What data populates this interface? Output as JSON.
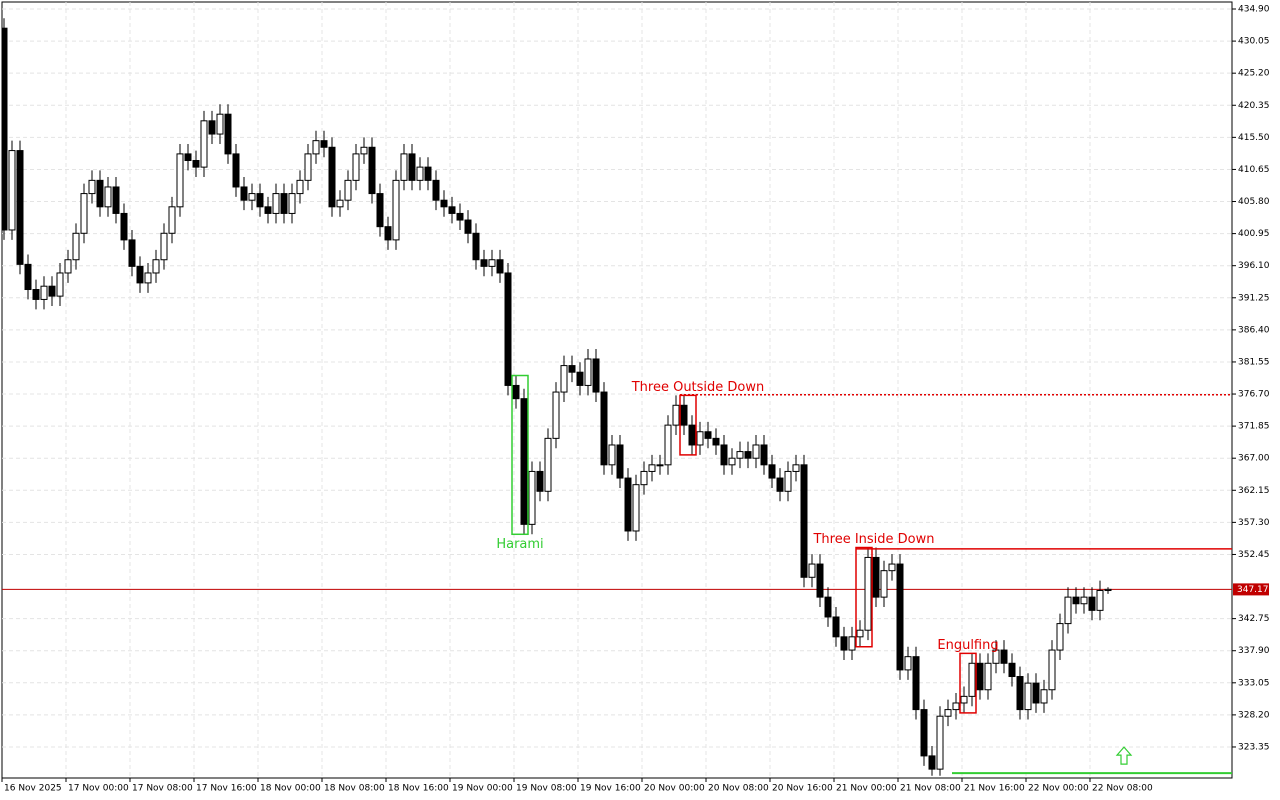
{
  "chart_data": {
    "type": "candlestick",
    "x": [
      "16 Nov 2025",
      null,
      null,
      null,
      null,
      null,
      null,
      null,
      "17 Nov 00:00",
      null,
      null,
      null,
      null,
      null,
      null,
      null,
      "17 Nov 08:00",
      null,
      null,
      null,
      null,
      null,
      null,
      null,
      "17 Nov 16:00",
      null,
      null,
      null,
      null,
      null,
      null,
      null,
      "18 Nov 00:00",
      null,
      null,
      null,
      null,
      null,
      null,
      null,
      "18 Nov 08:00",
      null,
      null,
      null,
      null,
      null,
      null,
      null,
      "18 Nov 16:00",
      null,
      null,
      null,
      null,
      null,
      null,
      null,
      "19 Nov 00:00",
      null,
      null,
      null,
      null,
      null,
      null,
      null,
      "19 Nov 08:00",
      null,
      null,
      null,
      null,
      null,
      null,
      null,
      "19 Nov 16:00",
      null,
      null,
      null,
      null,
      null,
      null,
      null,
      "20 Nov 00:00",
      null,
      null,
      null,
      null,
      null,
      null,
      null,
      "20 Nov 08:00",
      null,
      null,
      null,
      null,
      null,
      null,
      null,
      "20 Nov 16:00",
      null,
      null,
      null,
      null,
      null,
      null,
      null,
      "21 Nov 00:00",
      null,
      null,
      null,
      null,
      null,
      null,
      null,
      "21 Nov 08:00",
      null,
      null,
      null,
      null,
      null,
      null,
      null,
      "21 Nov 16:00",
      null,
      null,
      null,
      null,
      null,
      null,
      null,
      "22 Nov 00:00",
      null,
      null,
      null,
      null,
      null,
      null,
      null,
      "22 Nov 08:00",
      null,
      null
    ],
    "open": [
      432,
      401.5,
      413.5,
      396.3,
      392.5,
      391,
      393,
      391.5,
      395,
      397,
      401,
      407,
      409,
      405,
      408,
      404,
      400,
      396,
      393.5,
      395,
      397,
      401,
      405,
      413,
      412,
      411,
      418,
      416,
      419,
      413,
      408,
      406,
      407,
      405,
      404,
      407,
      404,
      407,
      409,
      413,
      415,
      414,
      405,
      406,
      409,
      413,
      414,
      407,
      402,
      400,
      409,
      413,
      409,
      411,
      409,
      406,
      405,
      404,
      403,
      401,
      397,
      396,
      397,
      395,
      378,
      376,
      357,
      365,
      362,
      370,
      377,
      381,
      380,
      378,
      382,
      377,
      366,
      369,
      364,
      356,
      363,
      365,
      366,
      366,
      372,
      375,
      372,
      369,
      371,
      370,
      369,
      366,
      367,
      368,
      367,
      369,
      366,
      364,
      362,
      365,
      366,
      349,
      351,
      346,
      343,
      340,
      338,
      340,
      341,
      352,
      346,
      350,
      351,
      335,
      337,
      329,
      322,
      320,
      328,
      329,
      330,
      331,
      336,
      332,
      336,
      338,
      336,
      334,
      329,
      333,
      330,
      332,
      338,
      342,
      346,
      345,
      346,
      344,
      347
    ],
    "high": [
      433.5,
      415,
      415,
      397.8,
      394,
      394.5,
      394.5,
      396.5,
      398.5,
      402.5,
      408.5,
      410.5,
      410.5,
      409.5,
      409.5,
      405.5,
      401.5,
      397.5,
      396.5,
      398.5,
      402.5,
      406.5,
      414.5,
      414.5,
      413.5,
      419.5,
      419.5,
      420.5,
      420.5,
      414.5,
      409.5,
      408.5,
      408.5,
      406.5,
      408.5,
      408.5,
      408.5,
      410.5,
      414.5,
      416.5,
      416.5,
      415.5,
      407.5,
      410.5,
      414.5,
      415.5,
      415.5,
      408.5,
      403.5,
      410.5,
      414.5,
      414.5,
      412.5,
      412.5,
      410.5,
      407.5,
      406.5,
      405.5,
      404.5,
      402.5,
      398.5,
      398.5,
      398.5,
      396.5,
      379.5,
      377.5,
      366.5,
      366.5,
      371.5,
      378.5,
      382.5,
      382.5,
      381.5,
      383.5,
      383.5,
      378.5,
      370.5,
      370.5,
      365.5,
      364.5,
      366.5,
      367.5,
      367.5,
      373.5,
      376.5,
      376.5,
      373.5,
      372.5,
      372.5,
      371.5,
      370.5,
      368.5,
      369.5,
      369.5,
      370.5,
      370.5,
      367.5,
      365.5,
      366.5,
      367.5,
      367.5,
      352.5,
      352.5,
      347.5,
      344.5,
      341.5,
      341.5,
      342.5,
      353.5,
      353.5,
      351.5,
      352.5,
      352.5,
      338.5,
      338.5,
      330.5,
      323.5,
      329.5,
      330.5,
      331.5,
      332.5,
      337.5,
      337.5,
      337.5,
      339.5,
      339.5,
      337.5,
      335.5,
      334.5,
      334.5,
      333.5,
      339.5,
      343.5,
      347.5,
      347.5,
      347.5,
      347.5,
      348.5,
      347.5
    ],
    "low": [
      400,
      400,
      394.8,
      391,
      389.5,
      389.5,
      390,
      390,
      393.5,
      395.5,
      399.5,
      405.5,
      403.5,
      403.5,
      402.5,
      398.5,
      394.5,
      392,
      392,
      393.5,
      395.5,
      399.5,
      403.5,
      410.5,
      409.5,
      409.5,
      414.5,
      414.5,
      411.5,
      406.5,
      404.5,
      404.5,
      403.5,
      402.5,
      402.5,
      402.5,
      402.5,
      405.5,
      407.5,
      411.5,
      412.5,
      403.5,
      403.5,
      404.5,
      407.5,
      411.5,
      405.5,
      400.5,
      398.5,
      398.5,
      407.5,
      407.5,
      407.5,
      407.5,
      404.5,
      403.5,
      402.5,
      401.5,
      399.5,
      395.5,
      394.5,
      394.5,
      393.5,
      376.5,
      374.5,
      355.5,
      355.5,
      360.5,
      360.5,
      368.5,
      375.5,
      378.5,
      376.5,
      376.5,
      375.5,
      364.5,
      364.5,
      362.5,
      354.5,
      354.5,
      361.5,
      363.5,
      364.5,
      364.5,
      370.5,
      370.5,
      367.5,
      367.5,
      368.5,
      367.5,
      364.5,
      364.5,
      365.5,
      365.5,
      365.5,
      364.5,
      362.5,
      360.5,
      360.5,
      363.5,
      347.5,
      347.5,
      344.5,
      341.5,
      338.5,
      336.5,
      336.5,
      338.5,
      339.5,
      344.5,
      344.5,
      348.5,
      333.5,
      333.5,
      327.5,
      320.5,
      319,
      319,
      326.5,
      327.5,
      328.5,
      329.5,
      330.5,
      330.5,
      334.5,
      334.5,
      332.5,
      327.5,
      327.5,
      328.5,
      328.5,
      330.5,
      336.5,
      340.5,
      343.5,
      343.5,
      342.5,
      342.5,
      346.5
    ],
    "close": [
      401.5,
      413.5,
      396.3,
      392.5,
      391,
      393,
      391.5,
      395,
      397,
      401,
      407,
      409,
      405,
      408,
      404,
      400,
      396,
      393.5,
      395,
      397,
      401,
      405,
      413,
      412,
      411,
      418,
      416,
      419,
      413,
      408,
      406,
      407,
      405,
      404,
      407,
      404,
      407,
      409,
      413,
      415,
      414,
      405,
      406,
      409,
      413,
      414,
      407,
      402,
      400,
      409,
      413,
      409,
      411,
      409,
      406,
      405,
      404,
      403,
      401,
      397,
      396,
      397,
      395,
      378,
      376,
      357,
      365,
      362,
      370,
      377,
      381,
      380,
      378,
      382,
      377,
      366,
      369,
      364,
      356,
      363,
      365,
      366,
      366,
      372,
      375,
      372,
      369,
      371,
      370,
      369,
      366,
      367,
      368,
      367,
      369,
      366,
      364,
      362,
      365,
      366,
      349,
      351,
      346,
      343,
      340,
      338,
      340,
      341,
      352,
      346,
      350,
      351,
      335,
      337,
      329,
      322,
      320,
      328,
      329,
      330,
      331,
      336,
      332,
      336,
      338,
      336,
      334,
      329,
      333,
      330,
      332,
      338,
      342,
      346,
      345,
      346,
      344,
      347,
      347.17
    ],
    "up_color": "#ffffff",
    "down_color": "#000000",
    "ylim": [
      318.66,
      435.96
    ],
    "yticks": [
      {
        "value": 434.9,
        "label": "434.90"
      },
      430.05,
      {
        "value": 425.2,
        "label": "425.20"
      },
      420.35,
      {
        "value": 415.5,
        "label": "415.50"
      },
      410.65,
      {
        "value": 405.8,
        "label": "405.80"
      },
      400.95,
      {
        "value": 396.1,
        "label": "396.10"
      },
      391.25,
      {
        "value": 386.4,
        "label": "386.40"
      },
      381.55,
      {
        "value": 376.7,
        "label": "376.70"
      },
      371.85,
      {
        "value": 367,
        "label": "367.00"
      },
      362.15,
      {
        "value": 357.3,
        "label": "357.30"
      },
      352.45,
      342.75,
      {
        "value": 337.9,
        "label": "337.90"
      },
      333.05,
      {
        "value": 328.2,
        "label": "328.20"
      },
      323.35
    ],
    "grid": true,
    "current_price": 347.17,
    "current_price_color": "#c00000",
    "annotations": [
      {
        "text": "Harami",
        "color": "#32cd32",
        "candles": [
          64,
          65
        ]
      },
      {
        "text": "Three Outside Down",
        "color": "#e00000",
        "candles": [
          85,
          86
        ],
        "level": 376.6,
        "line_style": "dotted"
      },
      {
        "text": "Three Inside Down",
        "color": "#e00000",
        "candles": [
          107,
          108
        ],
        "level": 353.3,
        "line_style": "solid"
      },
      {
        "text": "Engulfing",
        "color": "#e00000",
        "candles": [
          120,
          121
        ]
      }
    ],
    "signal": {
      "level": 319.4,
      "color": "#32cd32",
      "candle": 119
    }
  }
}
